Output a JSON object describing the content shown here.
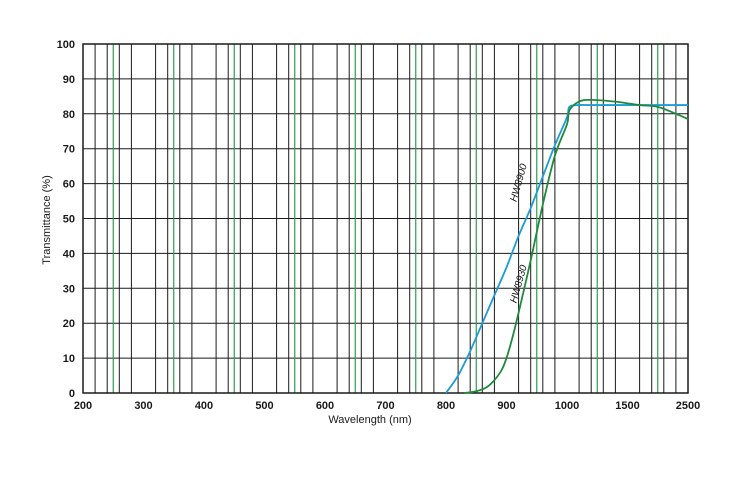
{
  "chart_data": {
    "type": "line",
    "title": "",
    "xlabel": "Wavelength (nm)",
    "ylabel": "Transmittance (%)",
    "xlim": [
      200,
      2500
    ],
    "ylim": [
      0,
      100
    ],
    "x_scale": "piecewise",
    "x_ticks": [
      200,
      300,
      400,
      500,
      600,
      700,
      800,
      900,
      1000,
      1500,
      2500
    ],
    "y_ticks": [
      0,
      10,
      20,
      30,
      40,
      50,
      60,
      70,
      80,
      90,
      100
    ],
    "grid": true,
    "legend": "none",
    "colors": {
      "grid": "#1a1a1a",
      "grid_major": "#2e9e4f"
    },
    "series": [
      {
        "name": "HW8900",
        "color": "#1b9bd7",
        "x": [
          800,
          820,
          840,
          860,
          880,
          900,
          920,
          940,
          960,
          980,
          1000,
          1020,
          1100,
          1200,
          1500,
          2000,
          2500
        ],
        "y": [
          0,
          5,
          12,
          20,
          28,
          36,
          45,
          53,
          62,
          71,
          79,
          82,
          82.5,
          82.5,
          82.5,
          82.5,
          82.5
        ]
      },
      {
        "name": "HW8930",
        "color": "#1f8a3c",
        "x": [
          830,
          850,
          870,
          890,
          900,
          910,
          920,
          940,
          960,
          980,
          1000,
          1020,
          1100,
          1200,
          1400,
          1500,
          1700,
          2000,
          2300,
          2500
        ],
        "y": [
          0,
          0.5,
          2,
          6,
          10,
          16,
          23,
          38,
          54,
          68,
          77,
          81,
          83.5,
          84,
          83.5,
          83,
          82.5,
          82,
          80,
          78.5
        ]
      }
    ],
    "annotations": [
      {
        "text": "HW8900",
        "x": 925,
        "y": 60
      },
      {
        "text": "HW8930",
        "x": 925,
        "y": 31
      }
    ]
  }
}
